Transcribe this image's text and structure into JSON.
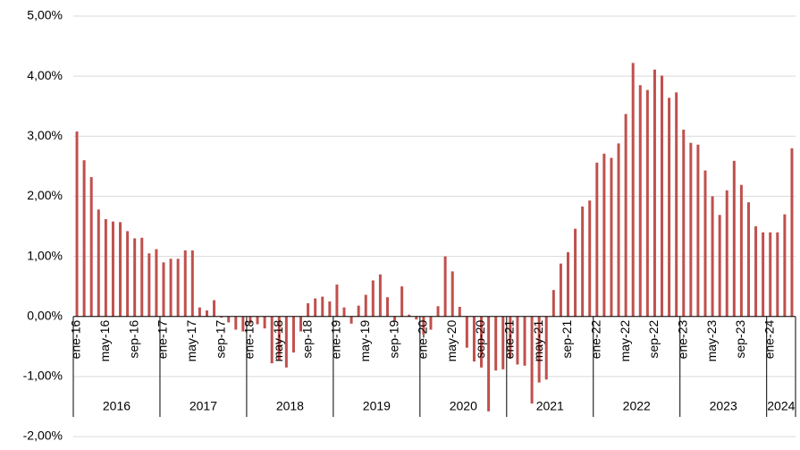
{
  "chart_data": {
    "type": "bar",
    "categories": [
      "ene-16",
      null,
      null,
      null,
      "may-16",
      null,
      null,
      null,
      "sep-16",
      null,
      null,
      null,
      "ene-17",
      null,
      null,
      null,
      "may-17",
      null,
      null,
      null,
      "sep-17",
      null,
      null,
      null,
      "ene-18",
      null,
      null,
      null,
      "may-18",
      null,
      null,
      null,
      "sep-18",
      null,
      null,
      null,
      "ene-19",
      null,
      null,
      null,
      "may-19",
      null,
      null,
      null,
      "sep-19",
      null,
      null,
      null,
      "ene-20",
      null,
      null,
      null,
      "may-20",
      null,
      null,
      null,
      "sep-20",
      null,
      null,
      null,
      "ene-21",
      null,
      null,
      null,
      "may-21",
      null,
      null,
      null,
      "sep-21",
      null,
      null,
      null,
      "ene-22",
      null,
      null,
      null,
      "may-22",
      null,
      null,
      null,
      "sep-22",
      null,
      null,
      null,
      "ene-23",
      null,
      null,
      null,
      "may-23",
      null,
      null,
      null,
      "sep-23",
      null,
      null,
      null,
      "ene-24",
      null,
      null,
      null
    ],
    "groups": [
      "2016",
      "2017",
      "2018",
      "2019",
      "2020",
      "2021",
      "2022",
      "2023",
      "2024"
    ],
    "values": [
      3.08,
      2.6,
      2.32,
      1.78,
      1.62,
      1.58,
      1.57,
      1.42,
      1.3,
      1.31,
      1.05,
      1.12,
      0.9,
      0.96,
      0.96,
      1.1,
      1.1,
      0.15,
      0.1,
      0.27,
      -0.02,
      -0.1,
      -0.22,
      -0.25,
      -0.12,
      -0.13,
      -0.2,
      -0.78,
      -0.72,
      -0.85,
      -0.6,
      -0.25,
      0.22,
      0.3,
      0.33,
      0.25,
      0.53,
      0.15,
      -0.12,
      0.18,
      0.36,
      0.6,
      0.7,
      0.32,
      -0.07,
      0.5,
      0.03,
      -0.05,
      -0.3,
      -0.22,
      0.17,
      1.0,
      0.75,
      0.16,
      -0.52,
      -0.75,
      -0.85,
      -1.58,
      -0.9,
      -0.88,
      -0.7,
      -0.8,
      -0.82,
      -1.45,
      -1.1,
      -1.05,
      0.44,
      0.88,
      1.07,
      1.46,
      1.83,
      1.93,
      2.56,
      2.71,
      2.64,
      2.88,
      3.37,
      4.22,
      3.85,
      3.77,
      4.11,
      4.01,
      3.64,
      3.73,
      3.11,
      2.89,
      2.86,
      2.43,
      2.0,
      1.69,
      2.1,
      2.59,
      2.19,
      1.9,
      1.5,
      1.4,
      1.4,
      1.4,
      1.7,
      2.8
    ],
    "color": "#c0504d",
    "ylim": [
      -2,
      5
    ],
    "yticks": [
      {
        "value": -2,
        "label": "-2,00%"
      },
      {
        "value": -1,
        "label": "-1,00%"
      },
      {
        "value": 0,
        "label": "0,00%"
      },
      {
        "value": 1,
        "label": "1,00%"
      },
      {
        "value": 2,
        "label": "2,00%"
      },
      {
        "value": 3,
        "label": "3,00%"
      },
      {
        "value": 4,
        "label": "4,00%"
      },
      {
        "value": 5,
        "label": "5,00%"
      }
    ],
    "grid": true
  }
}
